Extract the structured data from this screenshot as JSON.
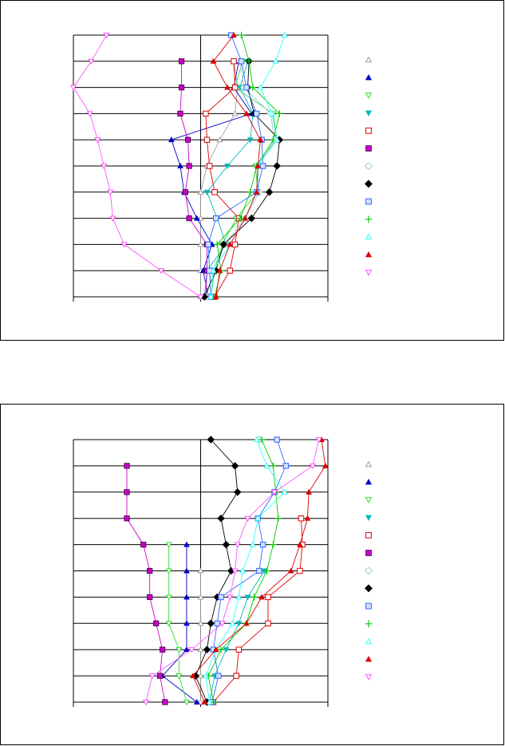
{
  "colors": {
    "s1": "#a0a0a0",
    "s2": "#0000cc",
    "s3": "#33dd33",
    "s4": "#00bbbb",
    "s5": "#dd0000",
    "s6": "#cc00cc",
    "s7": "#99cccc",
    "s8": "#000000",
    "s9": "#3366ff",
    "s10": "#00cc00",
    "s11": "#33ffff",
    "s12": "#dd0000",
    "s13": "#ff55ff"
  },
  "chart_data": [
    {
      "type": "line",
      "title": "",
      "xlabel": "",
      "ylabel": "",
      "xlim": [
        -1,
        1
      ],
      "ylim": [
        0,
        10
      ],
      "grid": true,
      "legend": "right",
      "y": [
        10,
        9,
        8,
        7,
        6,
        5,
        4,
        3,
        2,
        1,
        0
      ],
      "series": [
        {
          "marker": "open-triangle-up",
          "color": "#a0a0a0",
          "values": [
            null,
            0.26,
            0.29,
            0.27,
            0.15,
            0.05,
            0.0,
            0.0,
            0.0,
            0.0,
            0.0
          ]
        },
        {
          "marker": "filled-triangle-up",
          "color": "#0000cc",
          "values": [
            null,
            0.3,
            0.26,
            0.4,
            -0.23,
            -0.16,
            -0.13,
            -0.03,
            0.09,
            0.02,
            0.06
          ]
        },
        {
          "marker": "open-triangle-down",
          "color": "#33dd33",
          "values": [
            null,
            0.33,
            0.27,
            0.57,
            0.6,
            0.43,
            0.45,
            0.28,
            0.17,
            0.11,
            0.08
          ]
        },
        {
          "marker": "filled-triangle-down",
          "color": "#00bbbb",
          "values": [
            null,
            0.37,
            0.31,
            0.41,
            0.39,
            0.21,
            0.05,
            0.13,
            0.2,
            0.05,
            0.03
          ]
        },
        {
          "marker": "open-square",
          "color": "#dd0000",
          "values": [
            null,
            0.26,
            0.27,
            0.04,
            0.05,
            0.07,
            0.11,
            0.3,
            0.27,
            0.23,
            0.11
          ]
        },
        {
          "marker": "filled-square",
          "color": "#cc00cc",
          "values": [
            null,
            -0.15,
            -0.15,
            -0.16,
            -0.1,
            -0.09,
            -0.12,
            -0.09,
            0.05,
            0.05,
            0.04
          ]
        },
        {
          "marker": "open-diamond",
          "color": "#99cccc",
          "values": [
            null,
            0.31,
            0.34,
            0.55,
            0.58,
            0.45,
            0.46,
            0.35,
            0.19,
            0.09,
            0.05
          ]
        },
        {
          "marker": "filled-diamond",
          "color": "#000000",
          "values": [
            null,
            0.38,
            0.37,
            0.42,
            0.62,
            0.6,
            0.54,
            0.4,
            0.18,
            0.12,
            0.03
          ]
        },
        {
          "marker": "open-square-patterned",
          "color": "#3366ff",
          "values": [
            0.24,
            0.32,
            0.36,
            0.44,
            0.48,
            0.49,
            0.44,
            0.12,
            0.06,
            0.07,
            0.08
          ]
        },
        {
          "marker": "plus",
          "color": "#00cc00",
          "values": [
            0.32,
            0.38,
            0.41,
            0.62,
            0.57,
            0.44,
            0.39,
            0.31,
            0.13,
            0.16,
            0.11
          ]
        },
        {
          "marker": "open-triangle-up",
          "color": "#33ffff",
          "values": [
            0.66,
            0.59,
            0.47,
            0.56,
            0.6,
            0.45,
            0.44,
            0.35,
            0.23,
            0.1,
            0.08
          ]
        },
        {
          "marker": "filled-triangle-up",
          "color": "#dd0000",
          "values": [
            0.26,
            0.1,
            0.21,
            0.36,
            0.47,
            0.45,
            0.44,
            0.35,
            0.23,
            0.15,
            0.12
          ]
        },
        {
          "marker": "open-triangle-down",
          "color": "#ff55ff",
          "values": [
            -0.74,
            -0.86,
            -1.0,
            -0.87,
            -0.81,
            -0.76,
            -0.71,
            -0.69,
            -0.6,
            -0.31,
            0.0
          ]
        }
      ]
    },
    {
      "type": "line",
      "title": "",
      "xlabel": "",
      "ylabel": "",
      "xlim": [
        -1,
        1
      ],
      "ylim": [
        0,
        10
      ],
      "grid": true,
      "legend": "right",
      "y": [
        10,
        9,
        8,
        7,
        6,
        5,
        4,
        3,
        2,
        1,
        0
      ],
      "series": [
        {
          "marker": "open-triangle-up",
          "color": "#a0a0a0",
          "values": [
            null,
            null,
            null,
            null,
            null,
            0.0,
            0.0,
            0.0,
            0.0,
            0.0,
            0.0
          ]
        },
        {
          "marker": "filled-triangle-up",
          "color": "#0000cc",
          "values": [
            null,
            null,
            null,
            null,
            -0.11,
            -0.11,
            -0.11,
            -0.11,
            -0.11,
            -0.3,
            -0.03
          ]
        },
        {
          "marker": "open-triangle-down",
          "color": "#33dd33",
          "values": [
            null,
            null,
            null,
            null,
            -0.25,
            -0.25,
            -0.25,
            -0.25,
            -0.17,
            -0.17,
            -0.11
          ]
        },
        {
          "marker": "filled-triangle-down",
          "color": "#00bbbb",
          "values": [
            null,
            null,
            null,
            null,
            null,
            0.5,
            0.37,
            0.3,
            0.2,
            0.11,
            0.07
          ]
        },
        {
          "marker": "open-square",
          "color": "#dd0000",
          "values": [
            null,
            null,
            null,
            0.79,
            0.8,
            0.78,
            0.53,
            0.53,
            0.3,
            0.28,
            0.1
          ]
        },
        {
          "marker": "filled-square",
          "color": "#cc00cc",
          "values": [
            null,
            -0.58,
            -0.58,
            -0.58,
            -0.45,
            -0.4,
            -0.4,
            -0.35,
            -0.3,
            -0.32,
            -0.28
          ]
        },
        {
          "marker": "open-diamond",
          "color": "#99cccc",
          "values": [
            0.46,
            null,
            null,
            null,
            null,
            null,
            null,
            null,
            null,
            null,
            null
          ]
        },
        {
          "marker": "filled-diamond",
          "color": "#000000",
          "values": [
            0.08,
            0.27,
            0.29,
            0.16,
            0.2,
            0.24,
            0.13,
            0.08,
            0.05,
            -0.04,
            0.05
          ]
        },
        {
          "marker": "open-square-patterned",
          "color": "#3366ff",
          "values": [
            0.6,
            0.67,
            0.58,
            0.45,
            0.49,
            0.46,
            0.16,
            0.13,
            0.1,
            0.14,
            0.09
          ]
        },
        {
          "marker": "plus",
          "color": "#00cc00",
          "values": [
            0.48,
            0.57,
            0.59,
            0.61,
            0.57,
            0.52,
            0.42,
            0.36,
            0.16,
            0.06,
            0.1
          ]
        },
        {
          "marker": "open-triangle-up",
          "color": "#33ffff",
          "values": [
            0.44,
            0.52,
            0.66,
            0.45,
            0.41,
            0.33,
            0.3,
            0.25,
            0.12,
            0.04,
            0.07
          ]
        },
        {
          "marker": "filled-triangle-up",
          "color": "#dd0000",
          "values": [
            0.95,
            0.98,
            0.85,
            0.84,
            0.78,
            0.71,
            0.48,
            0.36,
            0.12,
            -0.06,
            0.03
          ]
        },
        {
          "marker": "open-triangle-down",
          "color": "#ff55ff",
          "values": [
            0.93,
            0.88,
            0.58,
            0.37,
            0.29,
            0.27,
            0.23,
            0.17,
            -0.07,
            -0.38,
            -0.43
          ]
        }
      ]
    }
  ]
}
